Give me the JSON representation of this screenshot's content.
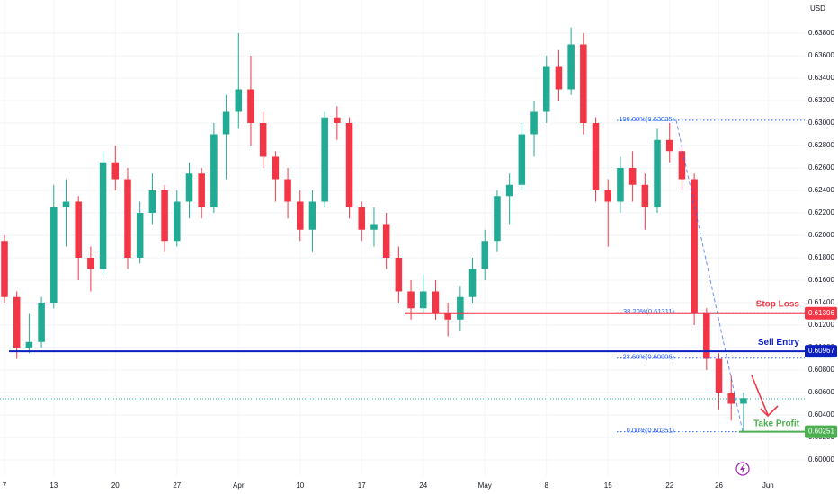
{
  "chart_data": {
    "type": "candlestick",
    "currency": "USD",
    "up_color": "#22ab94",
    "down_color": "#f23645",
    "xlim": [
      -0.365,
      64.97
    ],
    "xticks": [
      {
        "value": 0,
        "label": "7"
      },
      {
        "value": 4,
        "label": "13"
      },
      {
        "value": 9,
        "label": "20"
      },
      {
        "value": 14,
        "label": "27"
      },
      {
        "value": 19,
        "label": "Apr"
      },
      {
        "value": 24,
        "label": "10"
      },
      {
        "value": 29,
        "label": "17"
      },
      {
        "value": 34,
        "label": "24"
      },
      {
        "value": 39,
        "label": "May"
      },
      {
        "value": 44,
        "label": "8"
      },
      {
        "value": 49,
        "label": "15"
      },
      {
        "value": 54,
        "label": "22"
      },
      {
        "value": 58,
        "label": "26"
      },
      {
        "value": 62,
        "label": "Jun"
      }
    ],
    "ylim": [
      0.59856,
      0.64096
    ],
    "yticks": [
      {
        "value": 0.6,
        "label": "0.60000"
      },
      {
        "value": 0.602,
        "label": "0.60200"
      },
      {
        "value": 0.604,
        "label": "0.60400"
      },
      {
        "value": 0.606,
        "label": "0.60600"
      },
      {
        "value": 0.608,
        "label": "0.60800"
      },
      {
        "value": 0.61,
        "label": "0.61000"
      },
      {
        "value": 0.612,
        "label": "0.61200"
      },
      {
        "value": 0.614,
        "label": "0.61400"
      },
      {
        "value": 0.616,
        "label": "0.61600"
      },
      {
        "value": 0.618,
        "label": "0.61800"
      },
      {
        "value": 0.62,
        "label": "0.62000"
      },
      {
        "value": 0.622,
        "label": "0.62200"
      },
      {
        "value": 0.624,
        "label": "0.62400"
      },
      {
        "value": 0.626,
        "label": "0.62600"
      },
      {
        "value": 0.628,
        "label": "0.62800"
      },
      {
        "value": 0.63,
        "label": "0.63000"
      },
      {
        "value": 0.632,
        "label": "0.63200"
      },
      {
        "value": 0.634,
        "label": "0.63400"
      },
      {
        "value": 0.636,
        "label": "0.63600"
      },
      {
        "value": 0.638,
        "label": "0.63800"
      }
    ],
    "open": [
      0.6195,
      0.6145,
      0.61,
      0.6105,
      0.614,
      0.6225,
      0.623,
      0.618,
      0.617,
      0.6265,
      0.625,
      0.618,
      0.622,
      0.624,
      0.6195,
      0.623,
      0.6255,
      0.6225,
      0.629,
      0.631,
      0.633,
      0.63,
      0.627,
      0.625,
      0.623,
      0.6205,
      0.623,
      0.6305,
      0.63,
      0.6225,
      0.6205,
      0.621,
      0.618,
      0.615,
      0.6135,
      0.615,
      0.613,
      0.6125,
      0.6145,
      0.617,
      0.6195,
      0.6235,
      0.6245,
      0.629,
      0.631,
      0.635,
      0.633,
      0.637,
      0.63,
      0.624,
      0.623,
      0.626,
      0.6245,
      0.6225,
      0.6285,
      0.6275,
      0.625,
      0.613,
      0.609,
      0.606,
      0.605
    ],
    "high": [
      0.62,
      0.615,
      0.613,
      0.6145,
      0.6245,
      0.625,
      0.6235,
      0.619,
      0.6275,
      0.628,
      0.626,
      0.623,
      0.6255,
      0.6245,
      0.624,
      0.6265,
      0.626,
      0.63,
      0.6325,
      0.638,
      0.636,
      0.631,
      0.6275,
      0.626,
      0.624,
      0.624,
      0.631,
      0.6315,
      0.6305,
      0.623,
      0.6225,
      0.622,
      0.619,
      0.616,
      0.6165,
      0.616,
      0.614,
      0.6155,
      0.618,
      0.6205,
      0.624,
      0.6255,
      0.63,
      0.632,
      0.636,
      0.6365,
      0.6385,
      0.638,
      0.6305,
      0.625,
      0.627,
      0.6275,
      0.6255,
      0.6295,
      0.63,
      0.628,
      0.6255,
      0.6135,
      0.6095,
      0.6075,
      0.606
    ],
    "low": [
      0.614,
      0.609,
      0.6095,
      0.61,
      0.6135,
      0.619,
      0.616,
      0.615,
      0.6165,
      0.624,
      0.617,
      0.6175,
      0.621,
      0.6185,
      0.619,
      0.6215,
      0.6215,
      0.622,
      0.625,
      0.6295,
      0.628,
      0.626,
      0.623,
      0.6215,
      0.6195,
      0.6185,
      0.6225,
      0.6285,
      0.6215,
      0.6195,
      0.619,
      0.617,
      0.614,
      0.6125,
      0.613,
      0.6125,
      0.611,
      0.6115,
      0.614,
      0.616,
      0.6185,
      0.621,
      0.624,
      0.627,
      0.63,
      0.632,
      0.6325,
      0.629,
      0.623,
      0.619,
      0.622,
      0.623,
      0.6205,
      0.622,
      0.6265,
      0.624,
      0.612,
      0.608,
      0.6045,
      0.6035,
      0.6025
    ],
    "close": [
      0.6145,
      0.61,
      0.6105,
      0.614,
      0.6225,
      0.623,
      0.618,
      0.617,
      0.6265,
      0.625,
      0.618,
      0.622,
      0.624,
      0.6195,
      0.623,
      0.6255,
      0.6225,
      0.629,
      0.631,
      0.633,
      0.63,
      0.627,
      0.625,
      0.623,
      0.6205,
      0.623,
      0.6305,
      0.63,
      0.6225,
      0.6205,
      0.621,
      0.618,
      0.615,
      0.6135,
      0.615,
      0.613,
      0.6125,
      0.6145,
      0.617,
      0.6195,
      0.6235,
      0.6245,
      0.629,
      0.631,
      0.635,
      0.633,
      0.637,
      0.63,
      0.624,
      0.623,
      0.626,
      0.6245,
      0.6225,
      0.6285,
      0.6275,
      0.625,
      0.613,
      0.609,
      0.606,
      0.605,
      0.6055
    ],
    "levels": [
      {
        "name": "Stop Loss",
        "value": 0.61306,
        "label": "0.61306",
        "color": "#f23645"
      },
      {
        "name": "Sell Entry",
        "value": 0.60967,
        "label": "0.60967",
        "color": "#0c1fbf"
      },
      {
        "name": "Take Profit",
        "value": 0.60251,
        "label": "0.60251",
        "color": "#4caf50"
      }
    ],
    "fib_levels": [
      {
        "label": "100.00%(0.63025)",
        "value": 0.63025
      },
      {
        "label": "38.20%(0.61311)",
        "value": 0.61311
      },
      {
        "label": "23.60%(0.60906)",
        "value": 0.60906
      },
      {
        "label": "0.00%(0.60251)",
        "value": 0.60251
      }
    ],
    "last_price": 0.60544
  }
}
